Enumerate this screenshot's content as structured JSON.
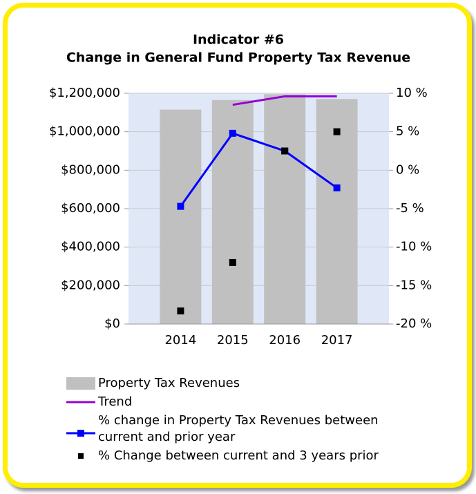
{
  "chart_data": {
    "type": "bar",
    "title": "Indicator #6",
    "subtitle": "Change in General Fund Property Tax Revenue",
    "categories": [
      "2014",
      "2015",
      "2016",
      "2017"
    ],
    "series": [
      {
        "name": "Property Tax Revenues",
        "type": "bar",
        "color": "#c0c0c0",
        "values": [
          1115000,
          1165000,
          1195000,
          1170000
        ]
      },
      {
        "name": "Trend",
        "type": "line",
        "axis": "y2",
        "color": "#9400d3",
        "values": [
          null,
          8.5,
          9.6,
          9.6
        ]
      },
      {
        "name": "% change in Property Tax Revenues between current and prior year",
        "type": "line",
        "marker": "square",
        "axis": "y2",
        "color": "#0000ff",
        "values": [
          -4.7,
          4.8,
          2.5,
          -2.3
        ]
      },
      {
        "name": "% Change between current and 3 years prior",
        "type": "scatter",
        "marker": "square",
        "axis": "y2",
        "color": "#000000",
        "values": [
          -18.3,
          -12.0,
          2.5,
          5.0
        ]
      }
    ],
    "ylim": [
      0,
      1200000
    ],
    "yticks": [
      {
        "value": 0,
        "label": "$0"
      },
      {
        "value": 200000,
        "label": "$200,000"
      },
      {
        "value": 400000,
        "label": "$400,000"
      },
      {
        "value": 600000,
        "label": "$600,000"
      },
      {
        "value": 800000,
        "label": "$800,000"
      },
      {
        "value": 1000000,
        "label": "$1,000,000"
      },
      {
        "value": 1200000,
        "label": "$1,200,000"
      }
    ],
    "y2lim": [
      -20,
      10
    ],
    "y2ticks": [
      {
        "value": -20,
        "label": "-20 %"
      },
      {
        "value": -15,
        "label": "-15 %"
      },
      {
        "value": -10,
        "label": "-10 %"
      },
      {
        "value": -5,
        "label": "-5 %"
      },
      {
        "value": 0,
        "label": "0 %"
      },
      {
        "value": 5,
        "label": "5 %"
      },
      {
        "value": 10,
        "label": "10 %"
      }
    ],
    "grid": true,
    "legend": "bottom"
  }
}
